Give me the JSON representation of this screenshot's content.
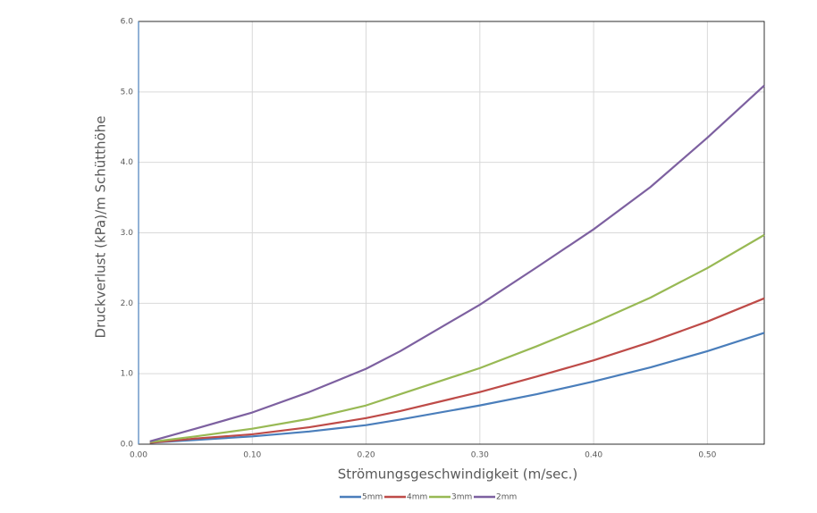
{
  "chart_data": {
    "type": "line",
    "xlabel": "Strömungsgeschwindigkeit (m/sec.)",
    "ylabel": "Druckverlust (kPa)/m Schütthöhe",
    "x": [
      0.01,
      0.05,
      0.1,
      0.15,
      0.2,
      0.23,
      0.3,
      0.35,
      0.4,
      0.45,
      0.5,
      0.55
    ],
    "series": [
      {
        "name": "5mm",
        "color": "#4a7ebb",
        "values": [
          0.02,
          0.06,
          0.11,
          0.18,
          0.27,
          0.35,
          0.55,
          0.71,
          0.89,
          1.09,
          1.32,
          1.58
        ]
      },
      {
        "name": "4mm",
        "color": "#be4b48",
        "values": [
          0.02,
          0.08,
          0.14,
          0.24,
          0.37,
          0.47,
          0.74,
          0.96,
          1.19,
          1.45,
          1.74,
          2.07
        ]
      },
      {
        "name": "3mm",
        "color": "#98b954",
        "values": [
          0.03,
          0.11,
          0.22,
          0.36,
          0.55,
          0.71,
          1.08,
          1.39,
          1.72,
          2.08,
          2.5,
          2.97
        ]
      },
      {
        "name": "2mm",
        "color": "#7d60a0",
        "values": [
          0.04,
          0.22,
          0.45,
          0.74,
          1.07,
          1.32,
          1.98,
          2.51,
          3.05,
          3.65,
          4.35,
          5.09
        ]
      }
    ],
    "xlim": [
      0,
      0.55
    ],
    "ylim": [
      0,
      6
    ],
    "xticks": [
      {
        "value": 0,
        "label": "0.00"
      },
      {
        "value": 0.1,
        "label": "0.10"
      },
      {
        "value": 0.2,
        "label": "0.20"
      },
      {
        "value": 0.3,
        "label": "0.30"
      },
      {
        "value": 0.4,
        "label": "0.40"
      },
      {
        "value": 0.5,
        "label": "0.50"
      }
    ],
    "yticks": [
      {
        "value": 0,
        "label": "0.0"
      },
      {
        "value": 1,
        "label": "1.0"
      },
      {
        "value": 2,
        "label": "2.0"
      },
      {
        "value": 3,
        "label": "3.0"
      },
      {
        "value": 4,
        "label": "4.0"
      },
      {
        "value": 5,
        "label": "5.0"
      },
      {
        "value": 6,
        "label": "6.0"
      }
    ],
    "grid": true
  }
}
